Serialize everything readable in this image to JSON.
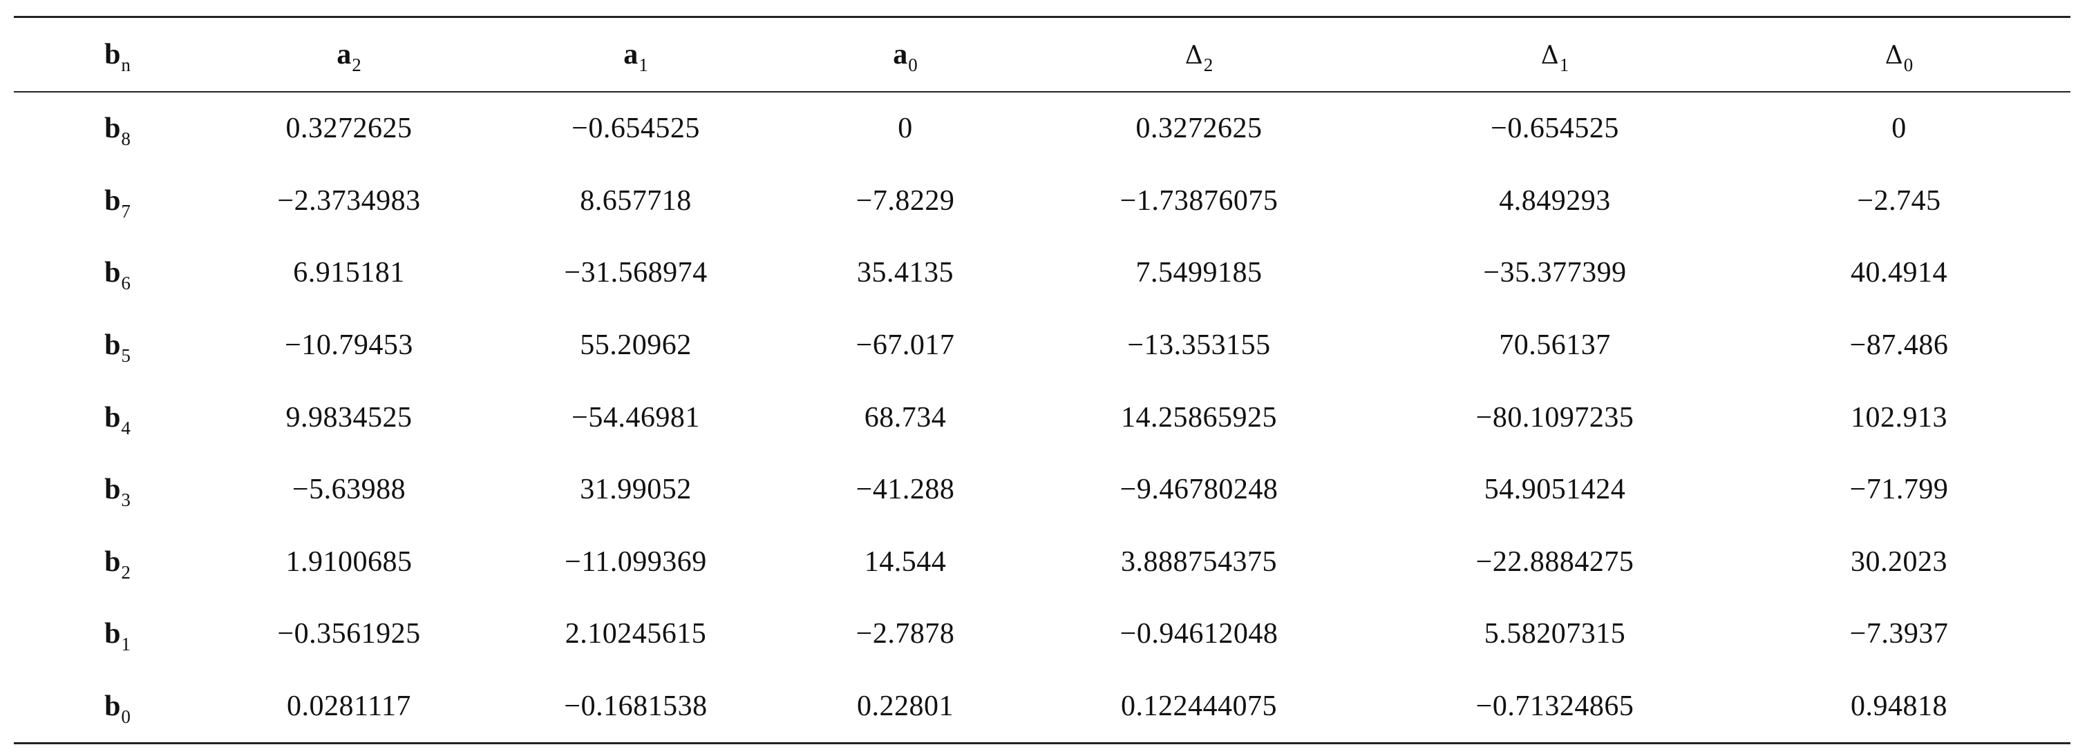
{
  "table": {
    "headers": [
      {
        "base": "b",
        "sub": "n"
      },
      {
        "base": "a",
        "sub": "2"
      },
      {
        "base": "a",
        "sub": "1"
      },
      {
        "base": "a",
        "sub": "0"
      },
      {
        "base": "Δ",
        "sub": "2"
      },
      {
        "base": "Δ",
        "sub": "1"
      },
      {
        "base": "Δ",
        "sub": "0"
      }
    ],
    "rows": [
      {
        "label": {
          "base": "b",
          "sub": "8"
        },
        "cells": [
          "0.3272625",
          "−0.654525",
          "0",
          "0.3272625",
          "−0.654525",
          "0"
        ]
      },
      {
        "label": {
          "base": "b",
          "sub": "7"
        },
        "cells": [
          "−2.3734983",
          "8.657718",
          "−7.8229",
          "−1.73876075",
          "4.849293",
          "−2.745"
        ]
      },
      {
        "label": {
          "base": "b",
          "sub": "6"
        },
        "cells": [
          "6.915181",
          "−31.568974",
          "35.4135",
          "7.5499185",
          "−35.377399",
          "40.4914"
        ]
      },
      {
        "label": {
          "base": "b",
          "sub": "5"
        },
        "cells": [
          "−10.79453",
          "55.20962",
          "−67.017",
          "−13.353155",
          "70.56137",
          "−87.486"
        ]
      },
      {
        "label": {
          "base": "b",
          "sub": "4"
        },
        "cells": [
          "9.9834525",
          "−54.46981",
          "68.734",
          "14.25865925",
          "−80.1097235",
          "102.913"
        ]
      },
      {
        "label": {
          "base": "b",
          "sub": "3"
        },
        "cells": [
          "−5.63988",
          "31.99052",
          "−41.288",
          "−9.46780248",
          "54.9051424",
          "−71.799"
        ]
      },
      {
        "label": {
          "base": "b",
          "sub": "2"
        },
        "cells": [
          "1.9100685",
          "−11.099369",
          "14.544",
          "3.888754375",
          "−22.8884275",
          "30.2023"
        ]
      },
      {
        "label": {
          "base": "b",
          "sub": "1"
        },
        "cells": [
          "−0.3561925",
          "2.10245615",
          "−2.7878",
          "−0.94612048",
          "5.58207315",
          "−7.3937"
        ]
      },
      {
        "label": {
          "base": "b",
          "sub": "0"
        },
        "cells": [
          "0.0281117",
          "−0.1681538",
          "0.22801",
          "0.122444075",
          "−0.71324865",
          "0.94818"
        ]
      }
    ]
  }
}
